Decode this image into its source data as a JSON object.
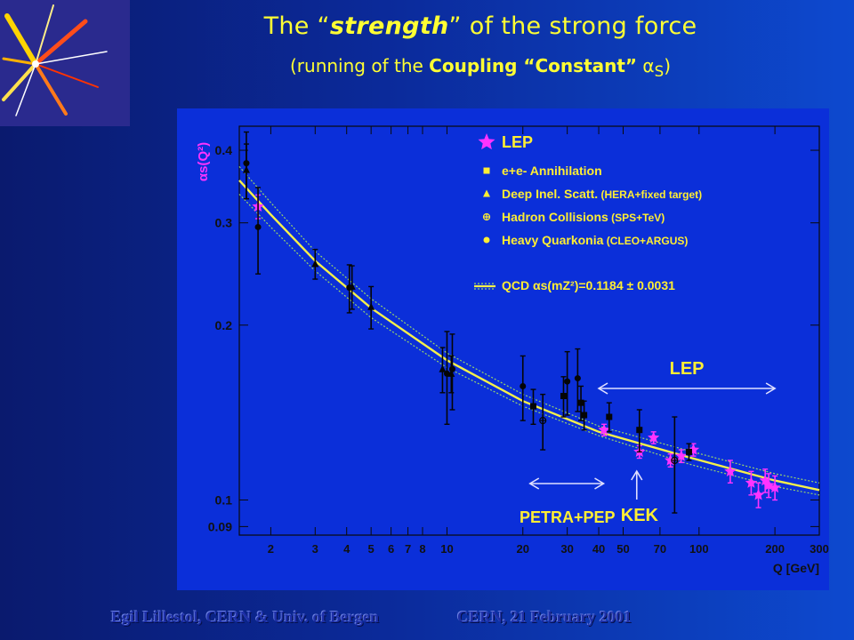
{
  "slide": {
    "title_prefix": "The “",
    "title_strong": "strength",
    "title_suffix": "” of the strong force",
    "subtitle_prefix": "(running of the ",
    "subtitle_strong": "Coupling “Constant”",
    "subtitle_alpha": " α",
    "subtitle_sub": "S",
    "subtitle_suffix": ")",
    "footer_left": "Egil Lillestol, CERN & Univ. of Bergen",
    "footer_right": "CERN, 21 February 2001"
  },
  "colors": {
    "chart_bg": "#0b2fd9",
    "axis_text": "#111111",
    "label_yellow": "#ffee33",
    "curve": "#f5f04a",
    "band": "#9ad66a",
    "lep_star": "#ff33ff",
    "points": "#050505"
  },
  "chart_data": {
    "type": "scatter",
    "xscale": "log",
    "yscale": "log",
    "xlim": [
      1.5,
      300
    ],
    "ylim": [
      0.087,
      0.44
    ],
    "xlabel": "Q [GeV]",
    "ylabel": "αs(Q²)",
    "xticks": [
      2,
      3,
      4,
      5,
      6,
      7,
      8,
      10,
      20,
      30,
      40,
      50,
      70,
      100,
      200,
      300
    ],
    "xtick_labels": [
      "2",
      "3",
      "4",
      "5",
      "6",
      "7",
      "8",
      "10",
      "20",
      "30",
      "40",
      "50",
      "70",
      "100",
      "200",
      "300"
    ],
    "yticks": [
      0.09,
      0.1,
      0.2,
      0.3,
      0.4
    ],
    "ytick_labels": [
      "0.09",
      "0.1",
      "0.2",
      "0.3",
      "0.4"
    ],
    "grid": false,
    "legend_position": "top-right",
    "legend": [
      {
        "marker": "star",
        "label": "LEP"
      },
      {
        "marker": "square",
        "label": "e+e- Annihilation"
      },
      {
        "marker": "triangle",
        "label": "Deep Inel. Scatt.",
        "note": "(HERA+fixed target)"
      },
      {
        "marker": "cross",
        "label": "Hadron Collisions",
        "note": "(SPS+TeV)"
      },
      {
        "marker": "circle",
        "label": "Heavy Quarkonia",
        "note": "(CLEO+ARGUS)"
      },
      {
        "marker": "band",
        "label": "QCD αs(mZ²)=0.1184 ± 0.0031"
      }
    ],
    "annotations": [
      {
        "text": "LEP",
        "arrow": "both",
        "x_from": 40,
        "x_to": 200
      },
      {
        "text": "PETRA+PEP",
        "arrow": "both",
        "x_from": 20,
        "x_to": 50
      },
      {
        "text": "KEK",
        "arrow": "up",
        "x": 58
      }
    ],
    "series": [
      {
        "name": "QCD αs(mZ²)=0.1184 ± 0.0031",
        "type": "line",
        "x": [
          1.5,
          2,
          3,
          5,
          10,
          20,
          40,
          91.2,
          200,
          300
        ],
        "y": [
          0.355,
          0.31,
          0.258,
          0.214,
          0.174,
          0.148,
          0.131,
          0.1184,
          0.108,
          0.104
        ],
        "y_low": [
          0.336,
          0.295,
          0.248,
          0.206,
          0.169,
          0.145,
          0.129,
          0.1153,
          0.1055,
          0.102
        ],
        "y_high": [
          0.375,
          0.325,
          0.268,
          0.222,
          0.179,
          0.152,
          0.134,
          0.1215,
          0.111,
          0.107
        ]
      },
      {
        "name": "LEP",
        "marker": "star",
        "x": [
          1.78,
          42,
          58,
          66,
          77,
          85,
          95,
          133,
          161,
          172,
          183,
          189,
          200
        ],
        "y": [
          0.32,
          0.132,
          0.121,
          0.128,
          0.117,
          0.119,
          0.122,
          0.112,
          0.107,
          0.102,
          0.108,
          0.106,
          0.105
        ],
        "err": [
          0.015,
          0.003,
          0.003,
          0.003,
          0.003,
          0.003,
          0.003,
          0.005,
          0.005,
          0.005,
          0.005,
          0.005,
          0.005
        ]
      },
      {
        "name": "e+e- Annihilation",
        "marker": "square",
        "x": [
          22,
          29,
          34,
          35,
          44,
          58,
          91.2
        ],
        "y": [
          0.145,
          0.151,
          0.147,
          0.14,
          0.139,
          0.132,
          0.121
        ],
        "err": [
          0.01,
          0.012,
          0.01,
          0.008,
          0.008,
          0.011,
          0.004
        ]
      },
      {
        "name": "Deep Inel. Scatt.",
        "marker": "triangle",
        "x": [
          1.6,
          3.0,
          4.2,
          5.0,
          9.6,
          10.4
        ],
        "y": [
          0.37,
          0.255,
          0.233,
          0.215,
          0.168,
          0.165
        ],
        "err": [
          0.04,
          0.015,
          0.02,
          0.018,
          0.015,
          0.012
        ]
      },
      {
        "name": "Hadron Collisions",
        "marker": "cross",
        "x": [
          24,
          80
        ],
        "y": [
          0.137,
          0.117
        ],
        "err": [
          0.015,
          0.022
        ]
      },
      {
        "name": "Heavy Quarkonia",
        "marker": "circle",
        "x": [
          1.6,
          1.78,
          4.1,
          10,
          10.5,
          20,
          30,
          33
        ],
        "y": [
          0.38,
          0.295,
          0.232,
          0.165,
          0.168,
          0.157,
          0.16,
          0.162
        ],
        "err": [
          0.05,
          0.05,
          0.022,
          0.03,
          0.025,
          0.02,
          0.02,
          0.02
        ]
      }
    ]
  }
}
